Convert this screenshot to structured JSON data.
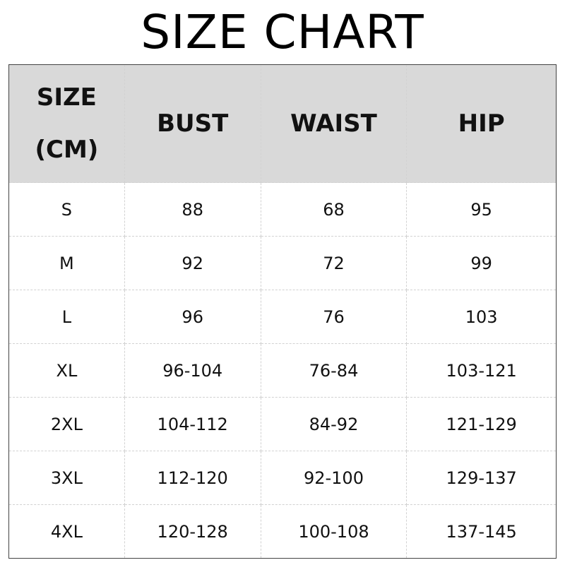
{
  "title": "SIZE CHART",
  "headers": {
    "size_line1": "SIZE",
    "size_line2": "(CM)",
    "bust": "BUST",
    "waist": "WAIST",
    "hip": "HIP"
  },
  "rows": [
    [
      "S",
      "88",
      "68",
      "95"
    ],
    [
      "M",
      "92",
      "72",
      "99"
    ],
    [
      "L",
      "96",
      "76",
      "103"
    ],
    [
      "XL",
      "96-104",
      "76-84",
      "103-121"
    ],
    [
      "2XL",
      "104-112",
      "84-92",
      "121-129"
    ],
    [
      "3XL",
      "112-120",
      "92-100",
      "129-137"
    ],
    [
      "4XL",
      "120-128",
      "100-108",
      "137-145"
    ]
  ]
}
